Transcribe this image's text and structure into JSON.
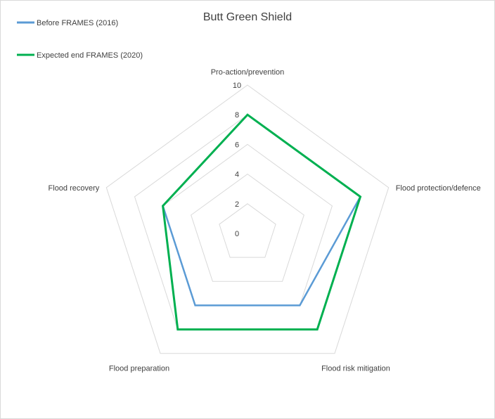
{
  "chart_data": {
    "type": "radar",
    "title": "Butt Green Shield",
    "axes": [
      "Pro-action/prevention",
      "Flood protection/defence",
      "Flood risk mitigation",
      "Flood preparation",
      "Flood recovery"
    ],
    "rlim": [
      0,
      10
    ],
    "ticks": [
      0,
      2,
      4,
      6,
      8,
      10
    ],
    "grid": true,
    "legend_position": "top-left",
    "series": [
      {
        "name": "Before FRAMES (2016)",
        "color": "#5b9bd5",
        "values": [
          8,
          8,
          6,
          6,
          6
        ]
      },
      {
        "name": "Expected end FRAMES (2020)",
        "color": "#00b050",
        "values": [
          8,
          8,
          8,
          8,
          6
        ]
      }
    ]
  }
}
